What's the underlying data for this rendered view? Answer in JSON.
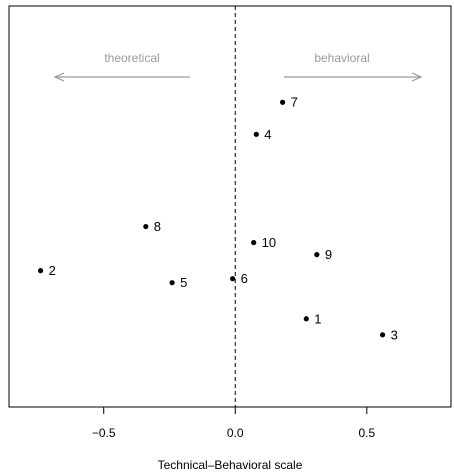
{
  "chart_data": {
    "type": "scatter",
    "xlabel": "Technical–Behavioral scale",
    "xlim": [
      -0.86,
      0.82
    ],
    "ylim": [
      0,
      1
    ],
    "xticks": [
      -0.5,
      0.0,
      0.5
    ],
    "xtick_labels": [
      "−0.5",
      "0.0",
      "0.5"
    ],
    "reference_line": {
      "x": 0,
      "style": "dashed"
    },
    "direction_arrows": [
      {
        "label": "theoretical",
        "direction": "left"
      },
      {
        "label": "behavioral",
        "direction": "right"
      }
    ],
    "points": [
      {
        "label": "1",
        "x": 0.27,
        "y": 0.22
      },
      {
        "label": "2",
        "x": -0.74,
        "y": 0.34
      },
      {
        "label": "3",
        "x": 0.56,
        "y": 0.18
      },
      {
        "label": "4",
        "x": 0.08,
        "y": 0.68
      },
      {
        "label": "5",
        "x": -0.24,
        "y": 0.31
      },
      {
        "label": "6",
        "x": -0.01,
        "y": 0.32
      },
      {
        "label": "7",
        "x": 0.18,
        "y": 0.76
      },
      {
        "label": "8",
        "x": -0.34,
        "y": 0.45
      },
      {
        "label": "9",
        "x": 0.31,
        "y": 0.38
      },
      {
        "label": "10",
        "x": 0.07,
        "y": 0.41
      }
    ],
    "grid": false,
    "legend": "none"
  }
}
